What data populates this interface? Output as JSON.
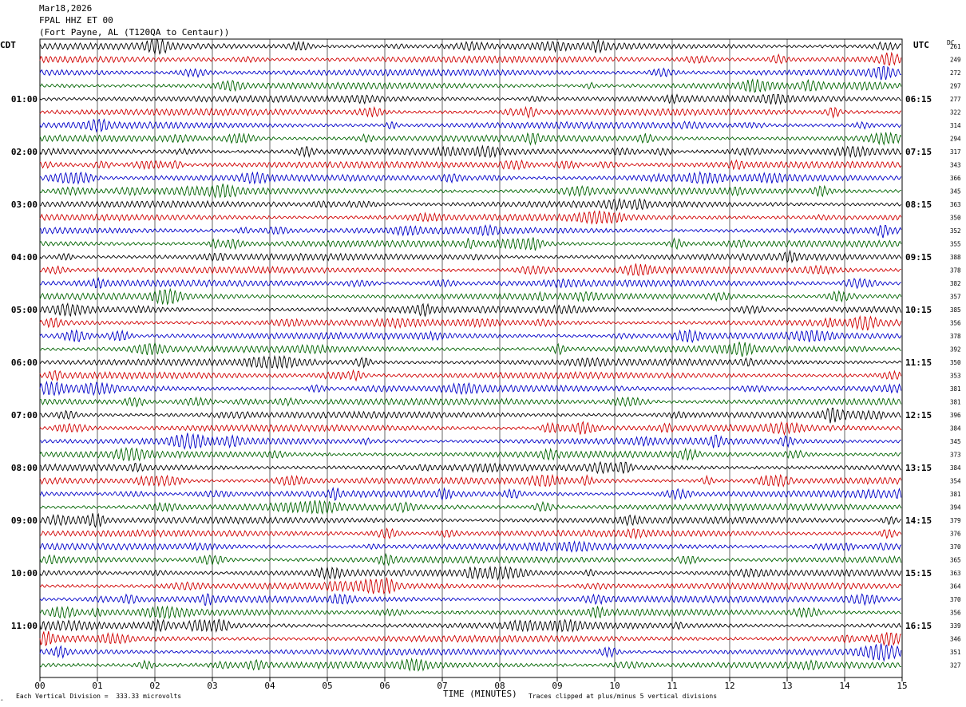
{
  "header": {
    "date": "Mar18,2026",
    "station": "FPAL HHZ ET 00",
    "location": "(Fort Payne, AL (T120QA to Centaur))"
  },
  "left_axis_label": "CDT",
  "right_axis_label": "UTC",
  "dc_label": "DC",
  "footer": {
    "scale_text": "Each Vertical Division =  333.33 microvolts",
    "xlabel": "TIME (MINUTES)",
    "clip_text": "Traces clipped at plus/minus 5 vertical divisions",
    "corner_mark": "‸"
  },
  "colors": {
    "trace_cycle": [
      "#000000",
      "#d00000",
      "#0000c8",
      "#006400"
    ],
    "grid": "#000000"
  },
  "chart_data": {
    "type": "line",
    "description_of_series": "helicorder rows",
    "x_ticks": [
      "00",
      "01",
      "02",
      "03",
      "04",
      "05",
      "06",
      "07",
      "08",
      "09",
      "10",
      "11",
      "12",
      "13",
      "14",
      "15"
    ],
    "xlim": [
      0,
      15
    ],
    "rows_count": 48,
    "left_time_labels": [
      "01:00",
      "02:00",
      "03:00",
      "04:00",
      "05:00",
      "06:00",
      "07:00",
      "08:00",
      "09:00",
      "10:00",
      "11:00"
    ],
    "right_time_labels": [
      "06:15",
      "07:15",
      "08:15",
      "09:15",
      "10:15",
      "11:15",
      "12:15",
      "13:15",
      "14:15",
      "15:15",
      "16:15"
    ],
    "dc_values": [
      "261",
      "249",
      "272",
      "297",
      "277",
      "322",
      "314",
      "294",
      "317",
      "343",
      "366",
      "345",
      "363",
      "350",
      "352",
      "355",
      "388",
      "378",
      "382",
      "357",
      "385",
      "356",
      "378",
      "392",
      "350",
      "353",
      "381",
      "381",
      "396",
      "384",
      "345",
      "373",
      "384",
      "354",
      "381",
      "394",
      "379",
      "376",
      "370",
      "365",
      "363",
      "364",
      "370",
      "356",
      "339",
      "346",
      "351",
      "327"
    ]
  }
}
